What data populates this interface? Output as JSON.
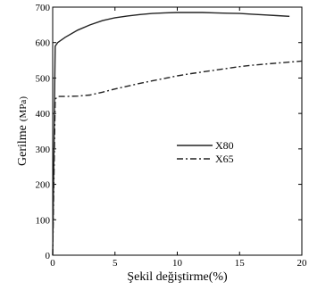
{
  "chart_data": {
    "type": "line",
    "xlabel": "Şekil değiştirme(%)",
    "ylabel": "Gerilme",
    "ylabel_unit": "(MPa)",
    "xlim": [
      0,
      20
    ],
    "ylim": [
      0,
      700
    ],
    "xticks": [
      0,
      5,
      10,
      15,
      20
    ],
    "yticks": [
      0,
      100,
      200,
      300,
      400,
      500,
      600,
      700
    ],
    "grid": false,
    "legend_position": "center-right",
    "series": [
      {
        "name": "X80",
        "style": "solid",
        "color": "#222222",
        "x": [
          0,
          0.2,
          0.4,
          1,
          2,
          3,
          4,
          5,
          6,
          7,
          8,
          9,
          10,
          11,
          12,
          13,
          14,
          15,
          16,
          17,
          18,
          19
        ],
        "y": [
          0,
          590,
          600,
          615,
          635,
          650,
          662,
          670,
          675,
          679,
          682,
          684,
          685,
          685,
          685,
          684,
          683,
          682,
          680,
          678,
          676,
          674
        ]
      },
      {
        "name": "X65",
        "style": "dashdot",
        "color": "#222222",
        "x": [
          0,
          0.2,
          0.4,
          1,
          2,
          3,
          4,
          5,
          6,
          7,
          8,
          9,
          10,
          11,
          12,
          13,
          14,
          15,
          16,
          17,
          18,
          19,
          20
        ],
        "y": [
          0,
          440,
          448,
          448,
          449,
          452,
          460,
          469,
          477,
          485,
          492,
          499,
          506,
          512,
          517,
          522,
          527,
          532,
          536,
          539,
          542,
          545,
          548
        ]
      }
    ]
  }
}
